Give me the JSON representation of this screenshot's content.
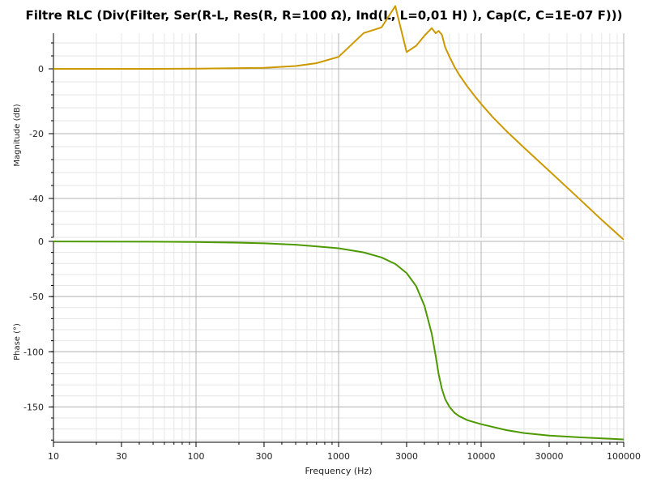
{
  "chart_data": {
    "title": "Filtre RLC (Div(Filter, Ser(R-L, Res(R, R=100 Ω), Ind(L, L=0,01 H) ), Cap(C, C=1E-07 F)))",
    "type": "line",
    "xlabel": "Frequency (Hz)",
    "xscale": "log",
    "xlim": [
      10,
      100000
    ],
    "x_ticks": [
      10,
      30,
      100,
      300,
      1000,
      3000,
      10000,
      30000,
      100000
    ],
    "x_tick_labels": [
      "10",
      "30",
      "100",
      "300",
      "1000",
      "3000",
      "10000",
      "30000",
      "100000"
    ],
    "grid": true,
    "colors": {
      "magnitude": "#cc9900",
      "phase": "#4d9900",
      "major_grid": "#b4b4b4",
      "minor_grid": "#e6e6e6"
    },
    "panels": [
      {
        "ylabel": "Magnitude (dB)",
        "ylim": [
          -52,
          11
        ],
        "y_ticks": [
          0,
          -20,
          -40
        ],
        "y_tick_labels": [
          "0",
          "-20",
          "-40"
        ],
        "series": [
          {
            "color": "#cc9900",
            "x": [
              10,
              50,
              100,
              300,
              500,
              700,
              1000,
              1500,
              2000,
              2500,
              3000,
              3500,
              4000,
              4500,
              4800,
              5033,
              5300,
              5600,
              6000,
              6500,
              7000,
              8000,
              9000,
              10000,
              12000,
              15000,
              20000,
              30000,
              50000,
              70000,
              100000
            ],
            "values": [
              0,
              0,
              0.04,
              0.31,
              0.87,
              1.74,
              3.7,
              11.06,
              12.8,
              19.37,
              5.17,
              7.13,
              10.23,
              12.58,
              11.01,
              11.72,
              10.56,
              6.59,
              3.69,
              0.63,
              -1.74,
              -5.42,
              -8.35,
              -10.83,
              -14.79,
              -19.14,
              -24.34,
              -31.5,
              -40.55,
              -46.58,
              -52.72
            ]
          }
        ]
      },
      {
        "ylabel": "Phase (°)",
        "ylim": [
          -182,
          0
        ],
        "y_ticks": [
          0,
          -50,
          -100,
          -150
        ],
        "y_tick_labels": [
          "0",
          "-50",
          "-100",
          "-150"
        ],
        "series": [
          {
            "color": "#4d9900",
            "x": [
              10,
              50,
              100,
              200,
              300,
              500,
              1000,
              1500,
              2000,
              2500,
              3000,
              3500,
              4000,
              4500,
              4800,
              5033,
              5300,
              5600,
              6000,
              6500,
              7000,
              8000,
              10000,
              15000,
              20000,
              30000,
              50000,
              100000
            ],
            "values": [
              -0.06,
              -0.29,
              -0.58,
              -1.17,
              -1.77,
              -3.01,
              -6.27,
              -10.0,
              -14.55,
              -20.49,
              -28.7,
              -40.6,
              -58.35,
              -83.6,
              -103.8,
              -120.2,
              -133.6,
              -143.1,
              -150.1,
              -155.3,
              -158.3,
              -162.0,
              -165.6,
              -171.0,
              -173.6,
              -175.9,
              -177.6,
              -179.4
            ]
          }
        ]
      }
    ]
  }
}
